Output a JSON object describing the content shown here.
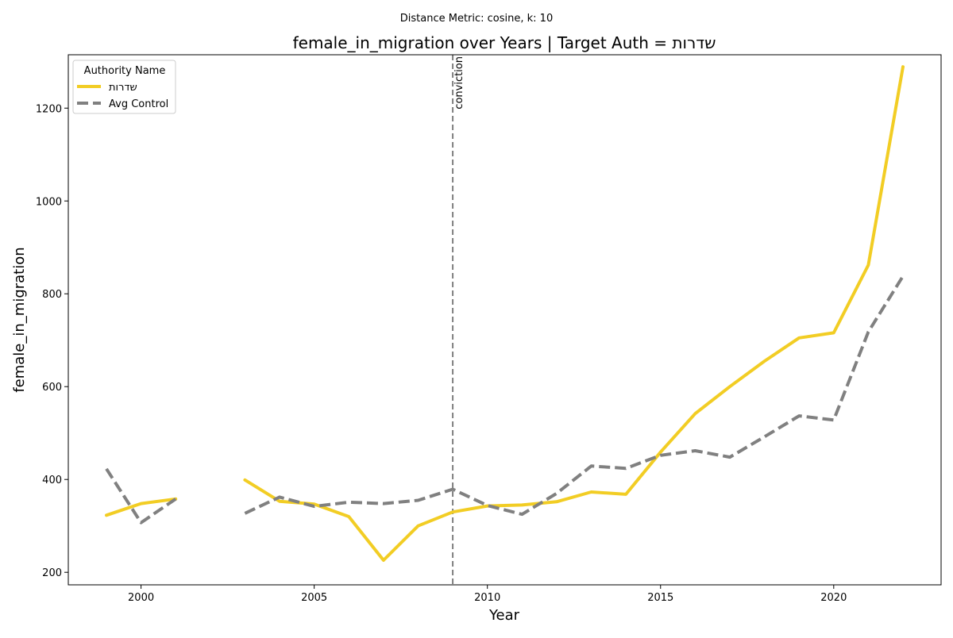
{
  "chart_data": {
    "type": "line",
    "suptitle": "Distance Metric: cosine, k: 10",
    "title": "female_in_migration over Years | Target Auth = שדרות",
    "xlabel": "Year",
    "ylabel": "female_in_migration",
    "xlim": [
      1997.9,
      2023.1
    ],
    "ylim": [
      173,
      1315
    ],
    "xticks": [
      2000,
      2005,
      2010,
      2015,
      2020
    ],
    "yticks": [
      200,
      400,
      600,
      800,
      1000,
      1200
    ],
    "grid": false,
    "legend": {
      "title": "Authority Name",
      "placement": "top-left"
    },
    "annotation": {
      "x": 2009,
      "label": "conviction",
      "style": "dashed",
      "color": "#808080"
    },
    "series": [
      {
        "name": "שדרות",
        "color": "#f2cd24",
        "style": "solid",
        "x": [
          1999,
          2000,
          2001,
          2002,
          2003,
          2004,
          2005,
          2006,
          2007,
          2008,
          2009,
          2010,
          2011,
          2012,
          2013,
          2014,
          2015,
          2016,
          2017,
          2018,
          2019,
          2020,
          2021,
          2022
        ],
        "y": [
          323,
          348,
          358,
          null,
          399,
          353,
          347,
          320,
          226,
          300,
          330,
          343,
          345,
          352,
          373,
          368,
          459,
          542,
          600,
          655,
          705,
          716,
          862,
          1289
        ]
      },
      {
        "name": "Avg Control",
        "color": "#808080",
        "style": "dashed",
        "x": [
          1999,
          2000,
          2001,
          2002,
          2003,
          2004,
          2005,
          2006,
          2007,
          2008,
          2009,
          2010,
          2011,
          2012,
          2013,
          2014,
          2015,
          2016,
          2017,
          2018,
          2019,
          2020,
          2021,
          2022
        ],
        "y": [
          423,
          307,
          358,
          null,
          327,
          362,
          342,
          351,
          348,
          355,
          379,
          344,
          325,
          370,
          429,
          424,
          452,
          462,
          448,
          492,
          537,
          528,
          718,
          838
        ]
      }
    ]
  }
}
